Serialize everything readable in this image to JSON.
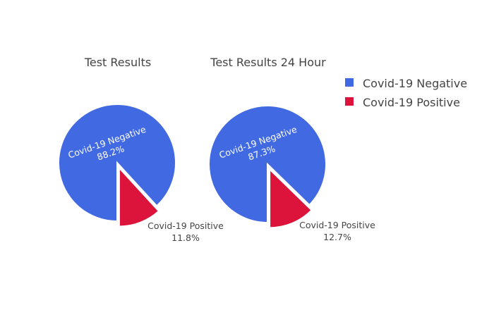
{
  "chart_data": [
    {
      "type": "pie",
      "title": "Test Results",
      "slices": [
        {
          "label": "Covid-19 Negative",
          "value": 88.2,
          "percent_text": "88.2%",
          "color": "#4169E1"
        },
        {
          "label": "Covid-19 Positive",
          "value": 11.8,
          "percent_text": "11.8%",
          "color": "#DC143C"
        }
      ]
    },
    {
      "type": "pie",
      "title": "Test Results 24 Hour",
      "slices": [
        {
          "label": "Covid-19 Negative",
          "value": 87.3,
          "percent_text": "87.3%",
          "color": "#4169E1"
        },
        {
          "label": "Covid-19 Positive",
          "value": 12.7,
          "percent_text": "12.7%",
          "color": "#DC143C"
        }
      ]
    }
  ],
  "legend": {
    "placement": "top-right",
    "items": [
      {
        "label": "Covid-19 Negative",
        "color": "#4169E1"
      },
      {
        "label": "Covid-19 Positive",
        "color": "#DC143C"
      }
    ]
  }
}
